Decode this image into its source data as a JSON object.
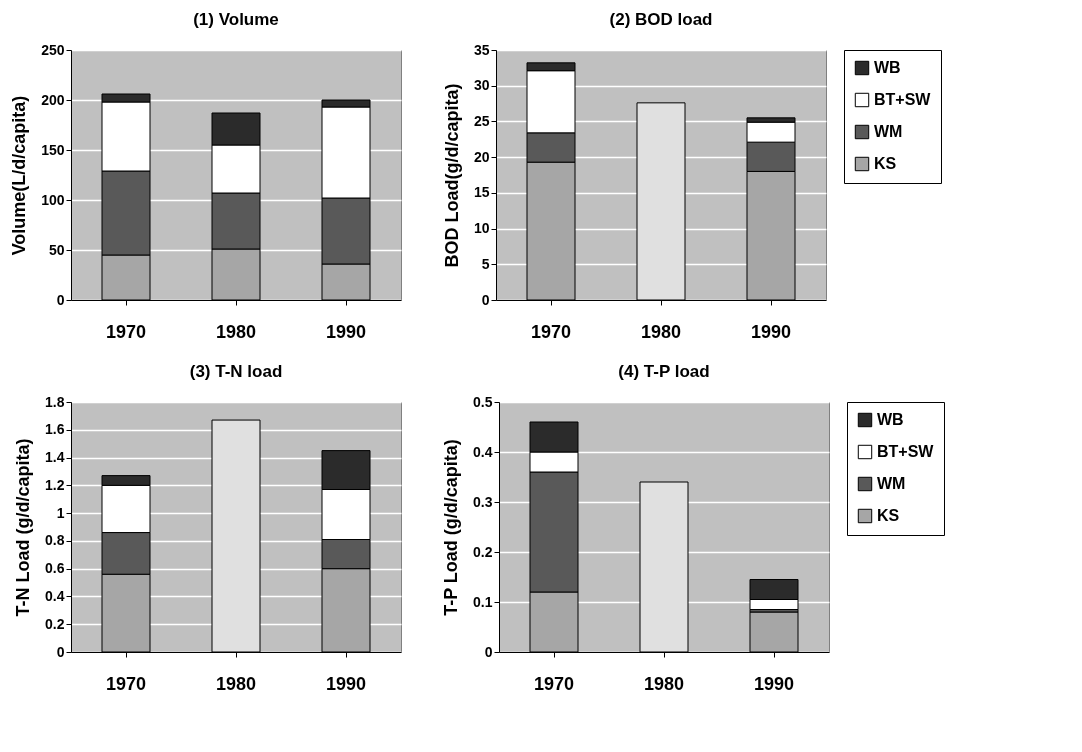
{
  "chart_data": [
    {
      "type": "bar",
      "stacked": true,
      "title": "(1) Volume",
      "ylabel": "Volume(L/d/capita)",
      "categories": [
        "1970",
        "1980",
        "1990"
      ],
      "ylim": [
        0,
        250
      ],
      "yticks": [
        0,
        50,
        100,
        150,
        200,
        250
      ],
      "grid": "y",
      "legend": false,
      "series": [
        {
          "color": "#a6a6a6",
          "values": [
            45,
            51,
            36
          ]
        },
        {
          "color": "#595959",
          "values": [
            84,
            56,
            66
          ]
        },
        {
          "color": "#ffffff",
          "values": [
            69,
            48,
            91
          ]
        },
        {
          "color": "#2b2b2b",
          "values": [
            8,
            32,
            7
          ]
        }
      ]
    },
    {
      "type": "bar",
      "stacked": true,
      "title": "(2) BOD load",
      "ylabel": "BOD Load(g/d/capita)",
      "categories": [
        "1970",
        "1980",
        "1990"
      ],
      "ylim": [
        0,
        35
      ],
      "yticks": [
        0,
        5,
        10,
        15,
        20,
        25,
        30,
        35
      ],
      "grid": "y",
      "legend": "right",
      "series": [
        {
          "name": "KS",
          "color": "#a6a6a6",
          "values": [
            19.3,
            null,
            18.0
          ]
        },
        {
          "name": "WM",
          "color": "#595959",
          "values": [
            4.1,
            null,
            4.1
          ]
        },
        {
          "name": "BT+SW",
          "color": "#ffffff",
          "values": [
            8.7,
            null,
            2.8
          ]
        },
        {
          "name": "WB",
          "color": "#2b2b2b",
          "values": [
            1.1,
            null,
            0.6
          ]
        },
        {
          "color": "#e0e0e0",
          "values": [
            null,
            27.6,
            null
          ]
        }
      ]
    },
    {
      "type": "bar",
      "stacked": true,
      "title": "(3) T-N load",
      "ylabel": "T-N Load (g/d/capita)",
      "categories": [
        "1970",
        "1980",
        "1990"
      ],
      "ylim": [
        0,
        1.8
      ],
      "yticks": [
        0,
        0.2,
        0.4,
        0.6,
        0.8,
        1,
        1.2,
        1.4,
        1.6,
        1.8
      ],
      "grid": "y",
      "legend": false,
      "series": [
        {
          "color": "#a6a6a6",
          "values": [
            0.56,
            null,
            0.6
          ]
        },
        {
          "color": "#595959",
          "values": [
            0.3,
            null,
            0.21
          ]
        },
        {
          "color": "#ffffff",
          "values": [
            0.34,
            null,
            0.36
          ]
        },
        {
          "color": "#2b2b2b",
          "values": [
            0.07,
            null,
            0.28
          ]
        },
        {
          "color": "#e0e0e0",
          "values": [
            null,
            1.67,
            null
          ]
        }
      ]
    },
    {
      "type": "bar",
      "stacked": true,
      "title": "(4) T-P load",
      "ylabel": "T-P Load (g/d/capita)",
      "categories": [
        "1970",
        "1980",
        "1990"
      ],
      "ylim": [
        0,
        0.5
      ],
      "yticks": [
        0,
        0.1,
        0.2,
        0.3,
        0.4,
        0.5
      ],
      "grid": "y",
      "legend": "right",
      "series": [
        {
          "name": "KS",
          "color": "#a6a6a6",
          "values": [
            0.12,
            null,
            0.08
          ]
        },
        {
          "name": "WM",
          "color": "#595959",
          "values": [
            0.24,
            null,
            0.005
          ]
        },
        {
          "name": "BT+SW",
          "color": "#ffffff",
          "values": [
            0.04,
            null,
            0.02
          ]
        },
        {
          "name": "WB",
          "color": "#2b2b2b",
          "values": [
            0.06,
            null,
            0.04
          ]
        },
        {
          "color": "#e0e0e0",
          "values": [
            null,
            0.34,
            null
          ]
        }
      ]
    }
  ]
}
